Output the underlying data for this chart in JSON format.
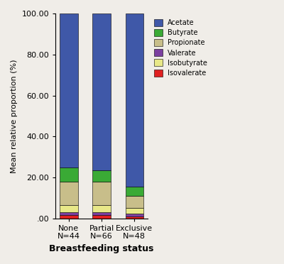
{
  "categories": [
    "None\nN=44",
    "Partial\nN=66",
    "Exclusive\nN=48"
  ],
  "series": {
    "Isovalerate": [
      1.5,
      1.5,
      1.0
    ],
    "Valerate": [
      1.5,
      1.5,
      1.5
    ],
    "Isobutyrate": [
      3.5,
      3.5,
      2.5
    ],
    "Propionate": [
      11.5,
      11.5,
      6.0
    ],
    "Butyrate": [
      7.0,
      5.5,
      4.5
    ],
    "Acetate": [
      75.0,
      76.5,
      84.5
    ]
  },
  "colors": {
    "Acetate": "#3f58a8",
    "Butyrate": "#3aaa35",
    "Propionate": "#c8be8a",
    "Valerate": "#7b3fa0",
    "Isobutyrate": "#e8e888",
    "Isovalerate": "#e02020"
  },
  "ylabel": "Mean relative proportion (%)",
  "xlabel": "Breastfeeding status",
  "ylim": [
    0,
    100
  ],
  "yticks": [
    0.0,
    20.0,
    40.0,
    60.0,
    80.0,
    100.0
  ],
  "ytick_labels": [
    ".00",
    "20.00",
    "40.00",
    "60.00",
    "80.00",
    "100.00"
  ],
  "legend_order": [
    "Acetate",
    "Butyrate",
    "Propionate",
    "Valerate",
    "Isobutyrate",
    "Isovalerate"
  ],
  "bar_width": 0.55,
  "background_color": "#f0ede8",
  "axes_bg": "#f0ede8"
}
